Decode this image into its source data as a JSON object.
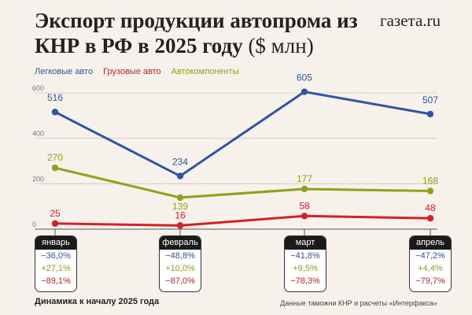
{
  "header": {
    "title": "Экспорт продукции автопрома из КНР в РФ в 2025 году",
    "unit": "($ млн)",
    "brand": "газета.ru"
  },
  "colors": {
    "passenger": "#2f55a4",
    "trucks": "#d42027",
    "parts": "#8aa51a",
    "grid": "#cfc8bf",
    "axis": "#555555"
  },
  "chart_data": {
    "type": "line",
    "title": "Экспорт продукции автопрома из КНР в РФ в 2025 году ($ млн)",
    "categories": [
      "январь",
      "февраль",
      "март",
      "апрель"
    ],
    "ylim": [
      0,
      600
    ],
    "yticks": [
      0,
      200,
      400,
      600
    ],
    "grid": true,
    "legend_position": "top-left",
    "series": [
      {
        "name": "Легковые авто",
        "color": "#2f55a4",
        "values": [
          516,
          234,
          605,
          507
        ]
      },
      {
        "name": "Грузовые авто",
        "color": "#d42027",
        "values": [
          25,
          16,
          58,
          48
        ]
      },
      {
        "name": "Автокомпоненты",
        "color": "#8aa51a",
        "values": [
          270,
          139,
          177,
          168
        ]
      }
    ]
  },
  "changes": [
    {
      "month": "январь",
      "passenger": "−36,0%",
      "parts": "+27,1%",
      "trucks": "−89,1%"
    },
    {
      "month": "февраль",
      "passenger": "−48,8%",
      "parts": "+10,0%",
      "trucks": "−87,0%"
    },
    {
      "month": "март",
      "passenger": "−41,8%",
      "parts": "+9,5%",
      "trucks": "−78,3%"
    },
    {
      "month": "апрель",
      "passenger": "−47,2%",
      "parts": "+4,4%",
      "trucks": "−79,7%"
    }
  ],
  "footer": {
    "note": "Динамика к началу 2025 года",
    "source": "Данные таможни КНР и расчеты «Интерфакса»"
  }
}
